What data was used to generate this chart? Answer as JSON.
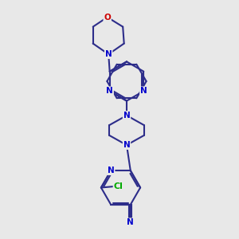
{
  "bg_color": "#e8e8e8",
  "bond_color": "#2d2d8a",
  "bond_width": 1.5,
  "atom_colors": {
    "N": "#0000cc",
    "O": "#cc0000",
    "Cl": "#00aa00"
  },
  "font_size": 7.5
}
